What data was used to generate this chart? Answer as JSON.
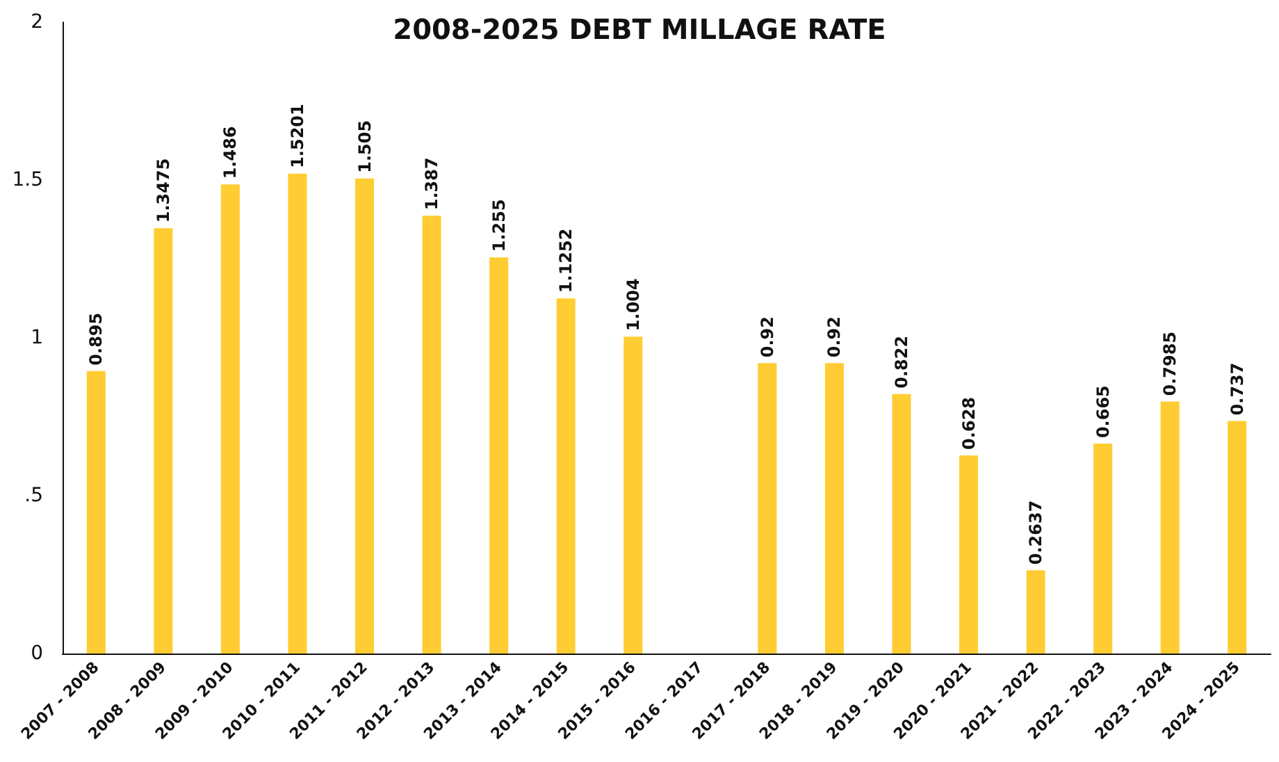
{
  "chart_data": {
    "type": "bar",
    "title": "2008-2025 DEBT MILLAGE RATE",
    "categories": [
      "2007 - 2008",
      "2008 - 2009",
      "2009 - 2010",
      "2010 - 2011",
      "2011 - 2012",
      "2012 - 2013",
      "2013 - 2014",
      "2014 - 2015",
      "2015 - 2016",
      "2016 - 2017",
      "2017 - 2018",
      "2018 - 2019",
      "2019 - 2020",
      "2020 - 2021",
      "2021 - 2022",
      "2022 - 2023",
      "2023 - 2024",
      "2024 - 2025"
    ],
    "values": [
      0.895,
      1.3475,
      1.486,
      1.5201,
      1.505,
      1.387,
      1.255,
      1.1252,
      1.004,
      null,
      0.92,
      0.92,
      0.822,
      0.628,
      0.2637,
      0.665,
      0.7985,
      0.737
    ],
    "color": "#ffcd33",
    "ylim": [
      0,
      2
    ],
    "yticks": [
      0,
      {
        "value": 0.5,
        "label": ".5"
      },
      1,
      1.5,
      2
    ],
    "grid": false,
    "data_labels": true
  }
}
